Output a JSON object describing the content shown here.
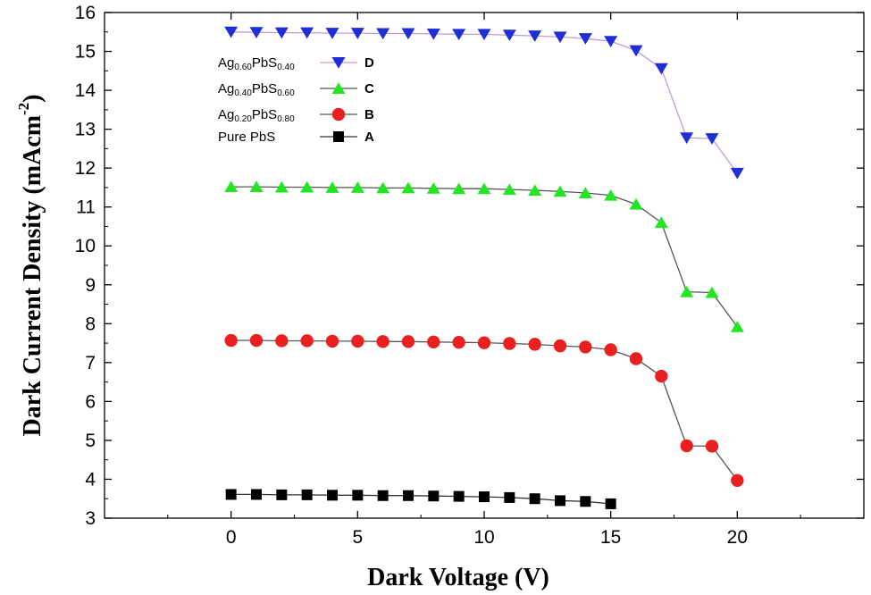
{
  "chart_data": {
    "type": "line",
    "title": "",
    "xlabel": "Dark Voltage (V)",
    "ylabel": "Dark Current Density (mAcm",
    "ylabel_sup": "-2",
    "ylabel_close": ")",
    "xlim": [
      -5,
      25
    ],
    "ylim": [
      3,
      16
    ],
    "xticks": [
      0,
      5,
      10,
      15,
      20
    ],
    "yticks": [
      3,
      4,
      5,
      6,
      7,
      8,
      9,
      10,
      11,
      12,
      13,
      14,
      15,
      16
    ],
    "legend_position": "top-left",
    "series": [
      {
        "id": "D",
        "letter": "D",
        "label_parts": [
          [
            "Ag",
            false
          ],
          [
            "0.60",
            true
          ],
          [
            "PbS",
            false
          ],
          [
            "0.40",
            true
          ]
        ],
        "marker": "triangle-down",
        "color": "#1f2fd6",
        "line_color": "#c39ad8",
        "x": [
          0,
          1,
          2,
          3,
          4,
          5,
          6,
          7,
          8,
          9,
          10,
          11,
          12,
          13,
          14,
          15,
          16,
          17,
          18,
          19,
          20
        ],
        "y": [
          15.5,
          15.49,
          15.48,
          15.48,
          15.47,
          15.47,
          15.46,
          15.46,
          15.45,
          15.44,
          15.44,
          15.42,
          15.4,
          15.37,
          15.33,
          15.26,
          15.02,
          14.56,
          12.78,
          12.76,
          11.87
        ]
      },
      {
        "id": "C",
        "letter": "C",
        "label_parts": [
          [
            "Ag",
            false
          ],
          [
            "0.40",
            true
          ],
          [
            "PbS",
            false
          ],
          [
            "0.60",
            true
          ]
        ],
        "marker": "triangle-up",
        "color": "#22e622",
        "line_color": "#555555",
        "x": [
          0,
          1,
          2,
          3,
          4,
          5,
          6,
          7,
          8,
          9,
          10,
          11,
          12,
          13,
          14,
          15,
          16,
          17,
          18,
          19,
          20
        ],
        "y": [
          11.52,
          11.52,
          11.51,
          11.51,
          11.5,
          11.5,
          11.49,
          11.49,
          11.48,
          11.47,
          11.47,
          11.45,
          11.43,
          11.4,
          11.36,
          11.3,
          11.07,
          10.6,
          8.82,
          8.8,
          7.92
        ]
      },
      {
        "id": "B",
        "letter": "B",
        "label_parts": [
          [
            "Ag",
            false
          ],
          [
            "0.20",
            true
          ],
          [
            "PbS",
            false
          ],
          [
            "0.80",
            true
          ]
        ],
        "marker": "circle",
        "color": "#e82020",
        "line_color": "#555555",
        "x": [
          0,
          1,
          2,
          3,
          4,
          5,
          6,
          7,
          8,
          9,
          10,
          11,
          12,
          13,
          14,
          15,
          16,
          17,
          18,
          19,
          20
        ],
        "y": [
          7.57,
          7.57,
          7.56,
          7.56,
          7.55,
          7.55,
          7.54,
          7.54,
          7.53,
          7.52,
          7.51,
          7.49,
          7.47,
          7.43,
          7.4,
          7.33,
          7.1,
          6.65,
          4.86,
          4.85,
          3.97
        ]
      },
      {
        "id": "A",
        "letter": "A",
        "label_parts": [
          [
            "Pure PbS",
            false
          ]
        ],
        "marker": "square",
        "color": "#000000",
        "line_color": "#333333",
        "x": [
          0,
          1,
          2,
          3,
          4,
          5,
          6,
          7,
          8,
          9,
          10,
          11,
          12,
          13,
          14,
          15
        ],
        "y": [
          3.61,
          3.61,
          3.6,
          3.6,
          3.59,
          3.59,
          3.58,
          3.58,
          3.57,
          3.56,
          3.55,
          3.53,
          3.5,
          3.45,
          3.43,
          3.37
        ]
      }
    ]
  }
}
